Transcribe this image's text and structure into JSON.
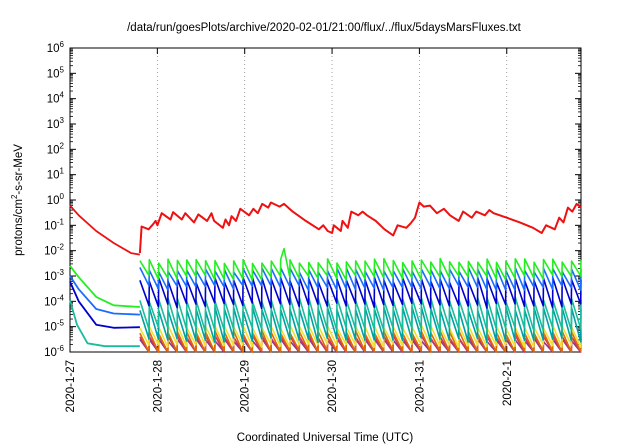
{
  "chart_data": {
    "type": "line",
    "title": "/data/run/goesPlots/archive/2020-02-01/21:00/flux/../flux/5daysMarsFluxes.txt",
    "xlabel": "Coordinated Universal Time (UTC)",
    "ylabel": {
      "base": "protons/cm",
      "sup": "2",
      "rest": "-s-sr-MeV"
    },
    "x_range": [
      0.0,
      5.85
    ],
    "y_scale": "log",
    "y_exponent_range": [
      -6,
      6
    ],
    "y_ticks": [
      {
        "base": "10",
        "exp": "-6"
      },
      {
        "base": "10",
        "exp": "-5"
      },
      {
        "base": "10",
        "exp": "-4"
      },
      {
        "base": "10",
        "exp": "-3"
      },
      {
        "base": "10",
        "exp": "-2"
      },
      {
        "base": "10",
        "exp": "-1"
      },
      {
        "base": "10",
        "exp": "0"
      },
      {
        "base": "10",
        "exp": "1"
      },
      {
        "base": "10",
        "exp": "2"
      },
      {
        "base": "10",
        "exp": "3"
      },
      {
        "base": "10",
        "exp": "4"
      },
      {
        "base": "10",
        "exp": "5"
      },
      {
        "base": "10",
        "exp": "6"
      }
    ],
    "x_ticks": [
      {
        "value": 0,
        "label": "2020-1-27"
      },
      {
        "value": 1,
        "label": "2020-1-28"
      },
      {
        "value": 2,
        "label": "2020-1-29"
      },
      {
        "value": 3,
        "label": "2020-1-30"
      },
      {
        "value": 4,
        "label": "2020-1-31"
      },
      {
        "value": 5,
        "label": "2020-2-1"
      }
    ],
    "x_grid_dotted": true,
    "gap_end_day": 0.8,
    "pre_gap": [
      {
        "color": "#ee1111",
        "points": [
          [
            0.0,
            0.6
          ],
          [
            0.1,
            0.25
          ],
          [
            0.3,
            0.06
          ],
          [
            0.5,
            0.02
          ],
          [
            0.7,
            0.008
          ],
          [
            0.8,
            0.007
          ]
        ]
      },
      {
        "color": "#22ee22",
        "points": [
          [
            0.0,
            0.0025
          ],
          [
            0.1,
            0.0009
          ],
          [
            0.3,
            0.00015
          ],
          [
            0.5,
            7e-05
          ],
          [
            0.8,
            6e-05
          ]
        ]
      },
      {
        "color": "#1a6cff",
        "points": [
          [
            0.0,
            0.001
          ],
          [
            0.1,
            0.0003
          ],
          [
            0.3,
            5e-05
          ],
          [
            0.5,
            3.3e-05
          ],
          [
            0.8,
            3e-05
          ]
        ]
      },
      {
        "color": "#0000cc",
        "points": [
          [
            0.0,
            0.0006
          ],
          [
            0.1,
            0.0001
          ],
          [
            0.3,
            1.2e-05
          ],
          [
            0.5,
            9e-06
          ],
          [
            0.8,
            9.5e-06
          ]
        ]
      },
      {
        "color": "#1abc9c",
        "points": [
          [
            0.0,
            0.00011
          ],
          [
            0.08,
            1.2e-05
          ],
          [
            0.2,
            2.2e-06
          ],
          [
            0.4,
            1.7e-06
          ],
          [
            0.8,
            1.7e-06
          ]
        ]
      }
    ],
    "red_main": [
      [
        0.8,
        0.008
      ],
      [
        0.82,
        0.09
      ],
      [
        0.9,
        0.07
      ],
      [
        0.95,
        0.11
      ],
      [
        0.98,
        0.15
      ],
      [
        1.0,
        0.1
      ],
      [
        1.05,
        0.3
      ],
      [
        1.15,
        0.17
      ],
      [
        1.18,
        0.33
      ],
      [
        1.28,
        0.17
      ],
      [
        1.32,
        0.3
      ],
      [
        1.42,
        0.13
      ],
      [
        1.47,
        0.27
      ],
      [
        1.57,
        0.15
      ],
      [
        1.62,
        0.3
      ],
      [
        1.65,
        0.15
      ],
      [
        1.75,
        0.08
      ],
      [
        1.78,
        0.17
      ],
      [
        1.82,
        0.1
      ],
      [
        1.85,
        0.23
      ],
      [
        1.9,
        0.15
      ],
      [
        1.95,
        0.45
      ],
      [
        2.05,
        0.25
      ],
      [
        2.1,
        0.45
      ],
      [
        2.15,
        0.3
      ],
      [
        2.2,
        0.7
      ],
      [
        2.27,
        0.5
      ],
      [
        2.3,
        0.8
      ],
      [
        2.4,
        0.55
      ],
      [
        2.45,
        0.7
      ],
      [
        2.55,
        0.35
      ],
      [
        2.7,
        0.15
      ],
      [
        2.85,
        0.07
      ],
      [
        2.9,
        0.1
      ],
      [
        2.95,
        0.06
      ],
      [
        3.0,
        0.05
      ],
      [
        3.02,
        0.1
      ],
      [
        3.1,
        0.06
      ],
      [
        3.12,
        0.15
      ],
      [
        3.18,
        0.08
      ],
      [
        3.22,
        0.35
      ],
      [
        3.3,
        0.25
      ],
      [
        3.35,
        0.35
      ],
      [
        3.4,
        0.25
      ],
      [
        3.5,
        0.15
      ],
      [
        3.6,
        0.07
      ],
      [
        3.7,
        0.04
      ],
      [
        3.75,
        0.1
      ],
      [
        3.85,
        0.08
      ],
      [
        3.9,
        0.12
      ],
      [
        3.95,
        0.2
      ],
      [
        4.0,
        0.8
      ],
      [
        4.05,
        0.55
      ],
      [
        4.12,
        0.6
      ],
      [
        4.2,
        0.3
      ],
      [
        4.28,
        0.45
      ],
      [
        4.35,
        0.25
      ],
      [
        4.45,
        0.15
      ],
      [
        4.5,
        0.35
      ],
      [
        4.6,
        0.2
      ],
      [
        4.65,
        0.35
      ],
      [
        4.75,
        0.25
      ],
      [
        4.8,
        0.4
      ],
      [
        4.85,
        0.3
      ],
      [
        5.0,
        0.2
      ],
      [
        5.15,
        0.13
      ],
      [
        5.3,
        0.08
      ],
      [
        5.4,
        0.05
      ],
      [
        5.45,
        0.1
      ],
      [
        5.55,
        0.07
      ],
      [
        5.6,
        0.2
      ],
      [
        5.65,
        0.13
      ],
      [
        5.7,
        0.5
      ],
      [
        5.75,
        0.35
      ],
      [
        5.8,
        0.7
      ],
      [
        5.85,
        0.5
      ]
    ],
    "sawtooth_teeth": 47,
    "sawtooth_series": [
      {
        "color": "#22ee22",
        "top": 0.004,
        "bottom": 0.0009,
        "noise": 0.22,
        "extra_spikes": [
          [
            2.45,
            0.012
          ]
        ]
      },
      {
        "color": "#1a6cff",
        "top": 0.0018,
        "bottom": 0.00035,
        "noise": 0.22
      },
      {
        "color": "#0000cc",
        "top": 0.0007,
        "bottom": 7e-05,
        "noise": 0.25
      },
      {
        "color": "#1abc9c",
        "top": 0.00012,
        "bottom": 8e-06,
        "noise": 0.2
      },
      {
        "color": "#00a0a0",
        "top": 5e-05,
        "bottom": 3e-06,
        "noise": 0.2
      },
      {
        "color": "#f0e030",
        "top": 1e-05,
        "bottom": 1.8e-06,
        "noise": 0.15
      },
      {
        "color": "#e06a00",
        "top": 6e-06,
        "bottom": 1e-06,
        "noise": 0.15
      },
      {
        "color": "#cc3366",
        "top": 4e-06,
        "bottom": 9e-07,
        "noise": 0.15
      },
      {
        "color": "#8b3a8b",
        "top": 3e-06,
        "bottom": 8e-07,
        "noise": 0.15
      }
    ]
  }
}
